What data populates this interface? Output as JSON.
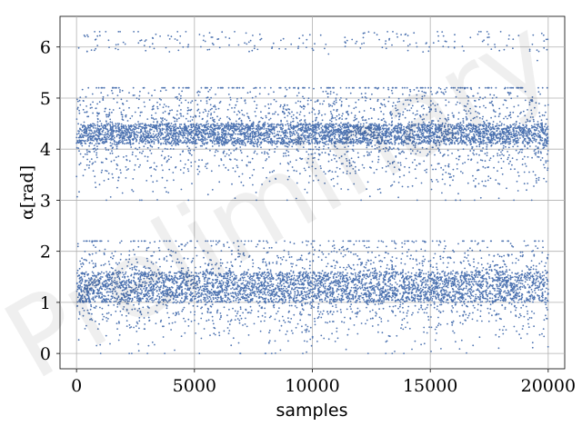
{
  "chart_data": {
    "type": "scatter",
    "title": "",
    "xlabel": "samples",
    "ylabel": "α[rad]",
    "xlim": [
      -700,
      20700
    ],
    "ylim": [
      -0.3,
      6.6
    ],
    "xticks": [
      0,
      5000,
      10000,
      15000,
      20000
    ],
    "xtick_labels": [
      "0",
      "5000",
      "10000",
      "15000",
      "20000"
    ],
    "yticks": [
      0,
      1,
      2,
      3,
      4,
      5,
      6
    ],
    "ytick_labels": [
      "0",
      "1",
      "2",
      "3",
      "4",
      "5",
      "6"
    ],
    "grid": true,
    "marker_color": "#4c72b0",
    "watermark": "Preliminary",
    "series": [
      {
        "description_of_distribution": "approx. 20000 samples, alpha values clustered in three bands",
        "bands": [
          {
            "center": 4.35,
            "core_range": [
              4.1,
              4.5
            ],
            "spread_range": [
              3.0,
              5.2
            ],
            "fraction": 0.5
          },
          {
            "center": 1.3,
            "core_range": [
              1.0,
              1.6
            ],
            "spread_range": [
              0.0,
              2.2
            ],
            "fraction": 0.48
          },
          {
            "center": 6.15,
            "core_range": [
              5.9,
              6.28
            ],
            "spread_range": [
              5.7,
              6.3
            ],
            "fraction": 0.02
          }
        ],
        "n_samples": 20000
      }
    ]
  }
}
